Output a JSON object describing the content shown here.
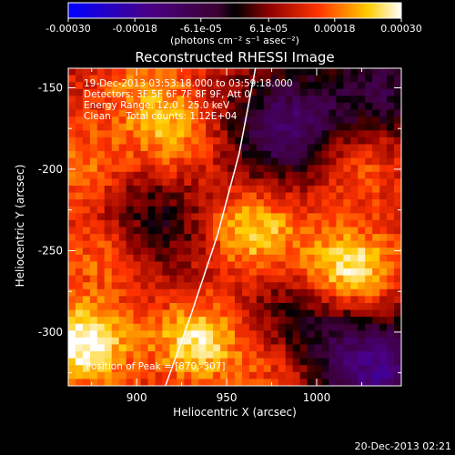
{
  "chart_data": {
    "type": "heatmap",
    "title": "Reconstructed RHESSI Image",
    "xlabel": "Heliocentric X (arcsec)",
    "ylabel": "Heliocentric Y (arcsec)",
    "xlim": [
      862,
      1047
    ],
    "ylim": [
      -333,
      -138
    ],
    "x_ticks": [
      900,
      950,
      1000
    ],
    "y_ticks": [
      -150,
      -200,
      -250,
      -300
    ],
    "colorbar": {
      "ticks": [
        "-0.00030",
        "-0.00018",
        "-6.1e-05",
        "6.1e-05",
        "0.00018",
        "0.00030"
      ],
      "unit_label": "(photons cm⁻² s⁻¹ asec⁻²)",
      "range": [
        -0.0003,
        0.0003
      ]
    },
    "annotations": [
      "19-Dec-2013 03:53:18.000 to 03:59:18.000",
      "Detectors: 3F 5F 6F 7F 8F 9F, Att 0",
      "Energy Range: 12.0 - 25.0 keV",
      "Clean     Total counts: 1.12E+04"
    ],
    "peak_label": "Position of Peak = [870,-307]",
    "peak": [
      870,
      -307
    ],
    "limb_curve": [
      [
        916,
        -333
      ],
      [
        930,
        -290
      ],
      [
        945,
        -240
      ],
      [
        957,
        -190
      ],
      [
        966,
        -138
      ]
    ],
    "hot_regions": [
      {
        "x": 870,
        "y": -307,
        "level": 1.0
      },
      {
        "x": 1018,
        "y": -262,
        "level": 0.9
      },
      {
        "x": 935,
        "y": -305,
        "level": 0.85
      },
      {
        "x": 965,
        "y": -238,
        "level": 0.75
      },
      {
        "x": 885,
        "y": -250,
        "level": 0.6
      },
      {
        "x": 920,
        "y": -180,
        "level": 0.55
      },
      {
        "x": 1020,
        "y": -195,
        "level": 0.5
      },
      {
        "x": 980,
        "y": -320,
        "level": 0.55
      },
      {
        "x": 870,
        "y": -200,
        "level": 0.45
      },
      {
        "x": 905,
        "y": -150,
        "level": 0.4
      }
    ],
    "cold_regions": [
      {
        "x": 985,
        "y": -175,
        "level": 0.8
      },
      {
        "x": 905,
        "y": -235,
        "level": 0.5
      },
      {
        "x": 1035,
        "y": -325,
        "level": 0.9
      },
      {
        "x": 990,
        "y": -300,
        "level": 0.5
      },
      {
        "x": 1040,
        "y": -150,
        "level": 0.55
      }
    ]
  },
  "footer_timestamp": "20-Dec-2013 02:21"
}
